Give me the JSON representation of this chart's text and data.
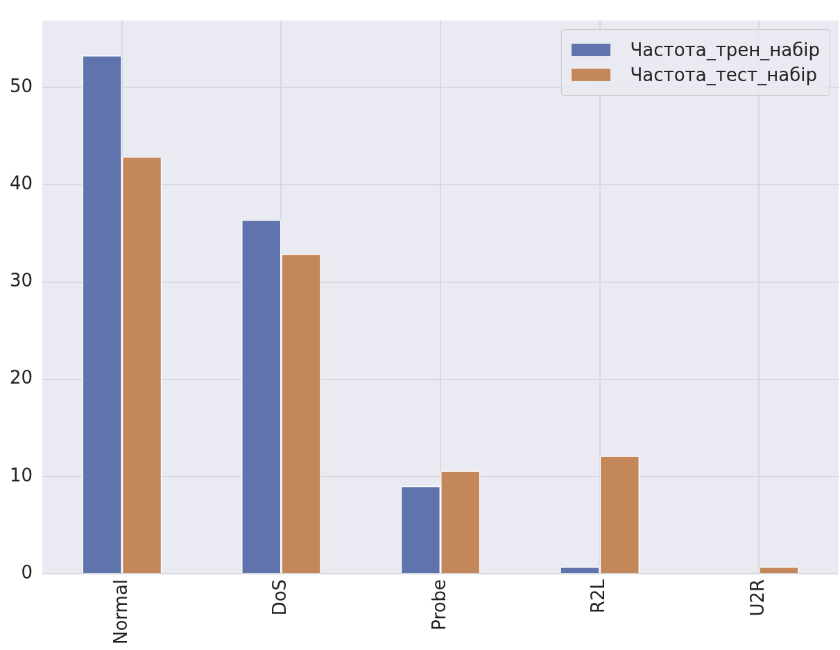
{
  "chart_data": {
    "type": "bar",
    "categories": [
      "Normal",
      "DoS",
      "Probe",
      "R2L",
      "U2R"
    ],
    "series": [
      {
        "name": "Частота_трен_набір",
        "color": "#5f74ad",
        "values": [
          53.3,
          36.4,
          9.0,
          0.7,
          0.0
        ]
      },
      {
        "name": "Частота_тест_набір",
        "color": "#c4875a",
        "values": [
          42.9,
          32.9,
          10.6,
          12.1,
          0.7
        ]
      }
    ],
    "ylim": [
      0,
      56.9
    ],
    "yticks": [
      0,
      10,
      20,
      30,
      40,
      50
    ],
    "grid": true,
    "legend": "top right"
  }
}
